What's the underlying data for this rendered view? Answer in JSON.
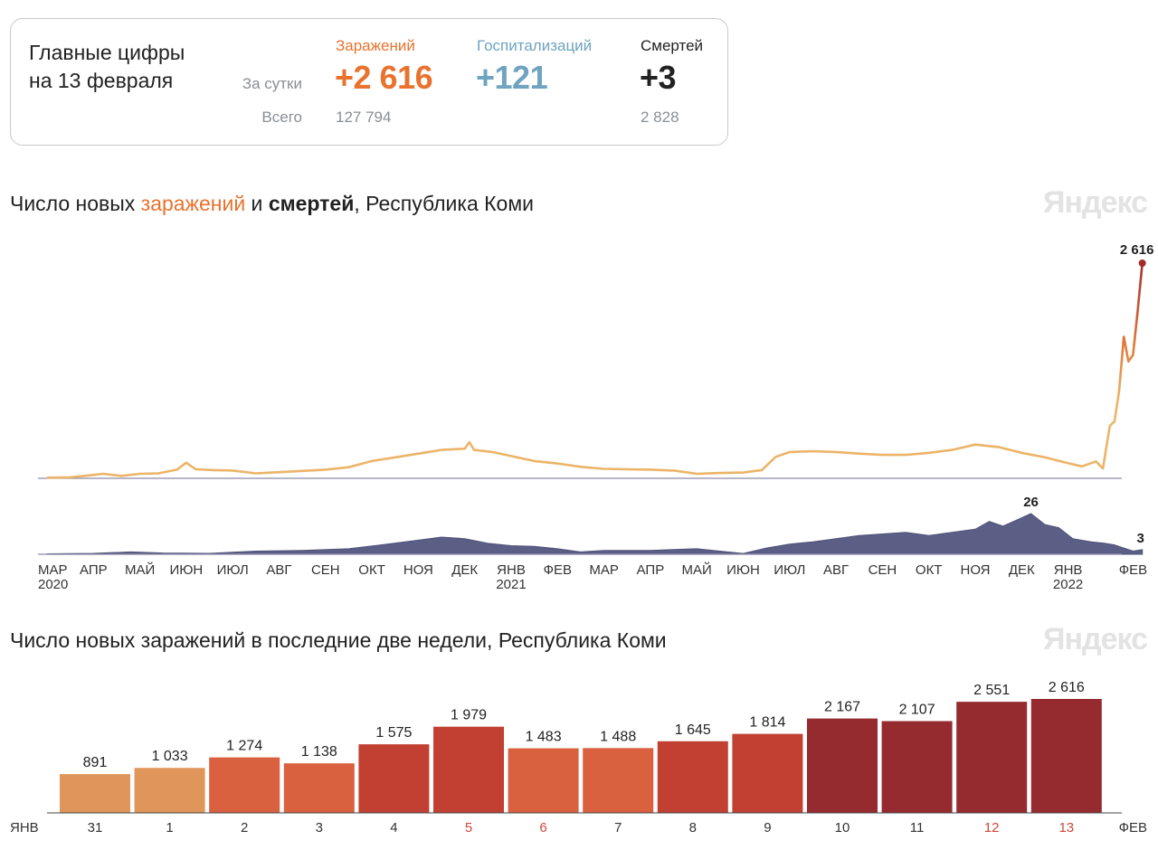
{
  "summary": {
    "title_line1": "Главные цифры",
    "title_line2": "на 13 февраля",
    "row_day_label": "За сутки",
    "row_total_label": "Всего",
    "infections": {
      "label": "Заражений",
      "day": "+2 616",
      "total": "127 794",
      "color": "#e8722e"
    },
    "hospitalizations": {
      "label": "Госпитализаций",
      "day": "+121",
      "total": "",
      "color": "#6fa3c0"
    },
    "deaths": {
      "label": "Смертей",
      "day": "+3",
      "total": "2 828",
      "color": "#222222"
    }
  },
  "chart1": {
    "title_part1": "Число новых ",
    "title_infections": "заражений",
    "title_part2": " и ",
    "title_deaths": "смертей",
    "title_part3": ", Республика Коми",
    "brand": "Яндекс",
    "last_infections_label": "2 616",
    "max_deaths_label": "26",
    "last_deaths_label": "3"
  },
  "chart2": {
    "title": "Число новых заражений в последние две недели, Республика Коми",
    "brand": "Яндекс"
  },
  "chart_data": [
    {
      "type": "line",
      "title": "Число новых заражений и смертей, Республика Коми",
      "series_name": "Заражения",
      "x_ticks": [
        {
          "label": "МАР",
          "year": "2020"
        },
        {
          "label": "АПР",
          "year": ""
        },
        {
          "label": "МАЙ",
          "year": ""
        },
        {
          "label": "ИЮН",
          "year": ""
        },
        {
          "label": "ИЮЛ",
          "year": ""
        },
        {
          "label": "АВГ",
          "year": ""
        },
        {
          "label": "СЕН",
          "year": ""
        },
        {
          "label": "ОКТ",
          "year": ""
        },
        {
          "label": "НОЯ",
          "year": ""
        },
        {
          "label": "ДЕК",
          "year": ""
        },
        {
          "label": "ЯНВ",
          "year": "2021"
        },
        {
          "label": "ФЕВ",
          "year": ""
        },
        {
          "label": "МАР",
          "year": ""
        },
        {
          "label": "АПР",
          "year": ""
        },
        {
          "label": "МАЙ",
          "year": ""
        },
        {
          "label": "ИЮН",
          "year": ""
        },
        {
          "label": "ИЮЛ",
          "year": ""
        },
        {
          "label": "АВГ",
          "year": ""
        },
        {
          "label": "СЕН",
          "year": ""
        },
        {
          "label": "ОКТ",
          "year": ""
        },
        {
          "label": "НОЯ",
          "year": ""
        },
        {
          "label": "ДЕК",
          "year": ""
        },
        {
          "label": "ЯНВ",
          "year": "2022"
        },
        {
          "label": "ФЕВ",
          "year": ""
        }
      ],
      "month_index": [
        0,
        1,
        2,
        3,
        4,
        5,
        6,
        7,
        8,
        9,
        10,
        11,
        12,
        13,
        14,
        15,
        16,
        17,
        18,
        19,
        20,
        21,
        22,
        23.4
      ],
      "infections_points": [
        [
          0,
          8
        ],
        [
          0.5,
          12
        ],
        [
          0.9,
          35
        ],
        [
          1.2,
          55
        ],
        [
          1.6,
          30
        ],
        [
          2.0,
          55
        ],
        [
          2.4,
          60
        ],
        [
          2.8,
          105
        ],
        [
          3.0,
          190
        ],
        [
          3.2,
          110
        ],
        [
          3.6,
          100
        ],
        [
          4.0,
          95
        ],
        [
          4.5,
          60
        ],
        [
          5.0,
          75
        ],
        [
          5.5,
          90
        ],
        [
          6.0,
          105
        ],
        [
          6.5,
          135
        ],
        [
          7.0,
          210
        ],
        [
          7.5,
          255
        ],
        [
          8.0,
          300
        ],
        [
          8.5,
          345
        ],
        [
          9.0,
          360
        ],
        [
          9.1,
          440
        ],
        [
          9.2,
          345
        ],
        [
          9.6,
          320
        ],
        [
          10.0,
          270
        ],
        [
          10.5,
          210
        ],
        [
          11.0,
          180
        ],
        [
          11.5,
          140
        ],
        [
          12.0,
          115
        ],
        [
          12.5,
          110
        ],
        [
          13.0,
          105
        ],
        [
          13.5,
          95
        ],
        [
          14.0,
          55
        ],
        [
          14.5,
          65
        ],
        [
          15.0,
          70
        ],
        [
          15.4,
          100
        ],
        [
          15.7,
          260
        ],
        [
          16.0,
          320
        ],
        [
          16.5,
          330
        ],
        [
          17.0,
          320
        ],
        [
          17.5,
          300
        ],
        [
          18.0,
          285
        ],
        [
          18.5,
          285
        ],
        [
          19.0,
          310
        ],
        [
          19.5,
          345
        ],
        [
          20.0,
          410
        ],
        [
          20.5,
          380
        ],
        [
          21.0,
          310
        ],
        [
          21.5,
          255
        ],
        [
          22.0,
          185
        ],
        [
          22.3,
          145
        ],
        [
          22.6,
          205
        ],
        [
          22.75,
          120
        ],
        [
          22.9,
          640
        ],
        [
          23.0,
          690
        ],
        [
          23.1,
          1060
        ],
        [
          23.2,
          1720
        ],
        [
          23.3,
          1420
        ],
        [
          23.4,
          1500
        ],
        [
          23.5,
          2030
        ],
        [
          23.6,
          2616
        ]
      ],
      "deaths_series_name": "Смерти",
      "deaths_points": [
        [
          0,
          0.3
        ],
        [
          1.0,
          0.6
        ],
        [
          1.8,
          1.5
        ],
        [
          2.5,
          0.8
        ],
        [
          3.5,
          0.6
        ],
        [
          4.5,
          2.0
        ],
        [
          5.5,
          2.5
        ],
        [
          6.5,
          3.5
        ],
        [
          7.2,
          6.0
        ],
        [
          8.0,
          9.0
        ],
        [
          8.5,
          11.0
        ],
        [
          9.0,
          10.0
        ],
        [
          9.5,
          7.0
        ],
        [
          10.0,
          5.5
        ],
        [
          10.5,
          5.0
        ],
        [
          11.0,
          3.5
        ],
        [
          11.5,
          1.5
        ],
        [
          12.0,
          2.5
        ],
        [
          13.0,
          2.5
        ],
        [
          13.5,
          3.0
        ],
        [
          14.0,
          3.5
        ],
        [
          14.5,
          2.0
        ],
        [
          15.0,
          0.5
        ],
        [
          15.5,
          4.0
        ],
        [
          16.0,
          6.5
        ],
        [
          16.5,
          8.0
        ],
        [
          17.0,
          10.0
        ],
        [
          17.5,
          12.0
        ],
        [
          18.0,
          13.0
        ],
        [
          18.5,
          14.0
        ],
        [
          19.0,
          12.0
        ],
        [
          19.5,
          14.0
        ],
        [
          20.0,
          16.0
        ],
        [
          20.3,
          21.0
        ],
        [
          20.6,
          18.0
        ],
        [
          20.9,
          22.0
        ],
        [
          21.2,
          26.0
        ],
        [
          21.5,
          19.0
        ],
        [
          21.8,
          17.0
        ],
        [
          22.1,
          10.0
        ],
        [
          22.5,
          8.0
        ],
        [
          22.8,
          7.0
        ],
        [
          23.0,
          6.0
        ],
        [
          23.2,
          4.0
        ],
        [
          23.4,
          2.0
        ],
        [
          23.6,
          3.0
        ]
      ],
      "infections_ylim": [
        0,
        2616
      ],
      "deaths_ylim": [
        0,
        26
      ]
    },
    {
      "type": "bar",
      "title": "Число новых заражений в последние две недели, Республика Коми",
      "month_start_label": "ЯНВ",
      "month_end_label": "ФЕВ",
      "categories": [
        "31",
        "1",
        "2",
        "3",
        "4",
        "5",
        "6",
        "7",
        "8",
        "9",
        "10",
        "11",
        "12",
        "13"
      ],
      "values": [
        891,
        1033,
        1274,
        1138,
        1575,
        1979,
        1483,
        1488,
        1645,
        1814,
        2167,
        2107,
        2551,
        2616
      ],
      "value_labels": [
        "891",
        "1 033",
        "1 274",
        "1 138",
        "1 575",
        "1 979",
        "1 483",
        "1 488",
        "1 645",
        "1 814",
        "2 167",
        "2 107",
        "2 551",
        "2 616"
      ],
      "weekend_days": [
        "5",
        "6",
        "12",
        "13"
      ],
      "ylim": [
        0,
        2616
      ],
      "color_scale": [
        {
          "max": 1100,
          "color": "#e0965a"
        },
        {
          "max": 1500,
          "color": "#d9613f"
        },
        {
          "max": 2000,
          "color": "#c14032"
        },
        {
          "max": 99999,
          "color": "#952a2f"
        }
      ]
    }
  ]
}
